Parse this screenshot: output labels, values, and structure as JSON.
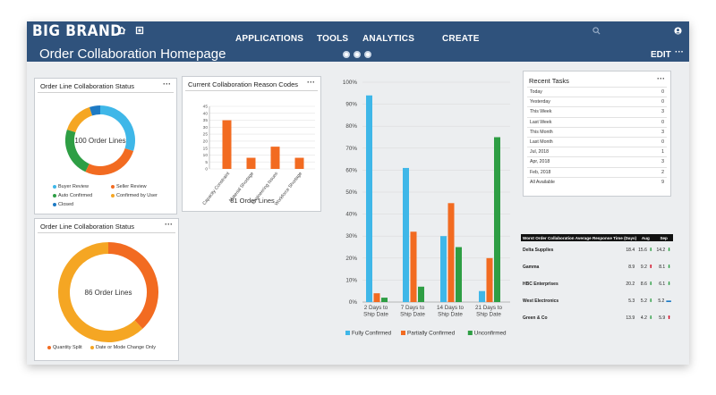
{
  "nav": {
    "brand": "BIG BRAND",
    "links": [
      "APPLICATIONS",
      "TOOLS",
      "ANALYTICS",
      "CREATE"
    ],
    "page_title": "Order Collaboration Homepage",
    "edit_label": "EDIT",
    "more_label": "···",
    "icons": [
      "home-icon",
      "grid-icon",
      "search-icon",
      "user-icon"
    ]
  },
  "status_panel": {
    "title": "Order Line Collaboration Status",
    "more": "···",
    "center_label": "100 Order Lines",
    "legend": [
      {
        "label": "Buyer Review",
        "color": "#3fb7e8"
      },
      {
        "label": "Seller Review",
        "color": "#f26b21"
      },
      {
        "label": "Auto Confirmed",
        "color": "#2e9e44"
      },
      {
        "label": "Confirmed by User",
        "color": "#f5a623"
      },
      {
        "label": "Closed",
        "color": "#1d7ac4"
      }
    ],
    "slices": [
      {
        "name": "Buyer Review",
        "value": 30,
        "color": "#3fb7e8"
      },
      {
        "name": "Seller Review",
        "value": 27,
        "color": "#f26b21"
      },
      {
        "name": "Auto Confirmed",
        "value": 23,
        "color": "#2e9e44"
      },
      {
        "name": "Confirmed by User",
        "value": 15,
        "color": "#f5a623"
      },
      {
        "name": "Closed",
        "value": 5,
        "color": "#1d7ac4"
      }
    ]
  },
  "status_panel2": {
    "title": "Order Line Collaboration Status",
    "more": "···",
    "center_label": "86 Order Lines",
    "legend": [
      {
        "label": "Quantity Split",
        "color": "#f26b21"
      },
      {
        "label": "Date or Mode Change Only",
        "color": "#f5a623"
      }
    ],
    "slices": [
      {
        "name": "Quantity Split",
        "value": 38,
        "color": "#f26b21"
      },
      {
        "name": "Date or Mode Change Only",
        "value": 62,
        "color": "#f5a623"
      }
    ]
  },
  "reason_panel": {
    "title": "Current Collaboration Reason Codes",
    "more": "···",
    "footer": "81 Order Lines"
  },
  "tasks_panel": {
    "title": "Recent Tasks",
    "more": "···",
    "rows": [
      {
        "label": "Today",
        "value": "0"
      },
      {
        "label": "Yesterday",
        "value": "0"
      },
      {
        "label": "This Week",
        "value": "3"
      },
      {
        "label": "Last Week",
        "value": "0"
      },
      {
        "label": "This Month",
        "value": "3"
      },
      {
        "label": "Last Month",
        "value": "0"
      },
      {
        "label": "Jul, 2018",
        "value": "1"
      },
      {
        "label": "Apr, 2018",
        "value": "3"
      },
      {
        "label": "Feb, 2018",
        "value": "2"
      },
      {
        "label": "All Available",
        "value": "9"
      }
    ]
  },
  "response_table": {
    "headers": [
      "Worst Order Collaboration Average Response Time (Days)",
      "Jul",
      "Aug",
      "Sep"
    ],
    "rows": [
      {
        "name": "Delta Supplies",
        "jul": "18.4",
        "aug": "15.6",
        "aug_dir": "down",
        "sep": "14.2",
        "sep_dir": "down"
      },
      {
        "name": "Gamma",
        "jul": "8.9",
        "aug": "9.2",
        "aug_dir": "up",
        "sep": "8.1",
        "sep_dir": "down"
      },
      {
        "name": "HBC Enterprises",
        "jul": "20.2",
        "aug": "8.6",
        "aug_dir": "down",
        "sep": "6.1",
        "sep_dir": "down"
      },
      {
        "name": "West Electronics",
        "jul": "5.3",
        "aug": "5.2",
        "aug_dir": "down",
        "sep": "5.2",
        "sep_dir": "flat"
      },
      {
        "name": "Green & Co",
        "jul": "13.9",
        "aug": "4.2",
        "aug_dir": "down",
        "sep": "5.9",
        "sep_dir": "up"
      }
    ],
    "colors": {
      "up": "#d0021b",
      "down": "#2e9e44",
      "flat": "#1d7ac4"
    }
  },
  "chart_data": [
    {
      "type": "bar",
      "title": "Current Collaboration Reason Codes",
      "categories": [
        "Capacity Constraint",
        "Material Shortage",
        "Engineering Issues",
        "Workforce Shortage"
      ],
      "values": [
        35,
        8,
        16,
        8
      ],
      "ylim": [
        0,
        45
      ],
      "yticks": [
        "0",
        "5",
        "10",
        "15",
        "20",
        "25",
        "30",
        "35",
        "40",
        "45"
      ],
      "grid": true,
      "color": "#f26b21"
    },
    {
      "type": "bar",
      "categories": [
        "2 Days to Ship Date",
        "7 Days to Ship Date",
        "14 Days to Ship Date",
        "21 Days to Ship Date"
      ],
      "series": [
        {
          "name": "Fully Confirmed",
          "values": [
            94,
            61,
            30,
            5
          ],
          "color": "#3fb7e8"
        },
        {
          "name": "Partially Confirmed",
          "values": [
            4,
            32,
            45,
            20
          ],
          "color": "#f26b21"
        },
        {
          "name": "Unconfirmed",
          "values": [
            2,
            7,
            25,
            75
          ],
          "color": "#2e9e44"
        }
      ],
      "ylim": [
        0,
        100
      ],
      "yticks": [
        "0%",
        "10%",
        "20%",
        "30%",
        "40%",
        "50%",
        "60%",
        "70%",
        "80%",
        "90%",
        "100%"
      ],
      "legend_position": "bottom",
      "grid": true
    }
  ]
}
